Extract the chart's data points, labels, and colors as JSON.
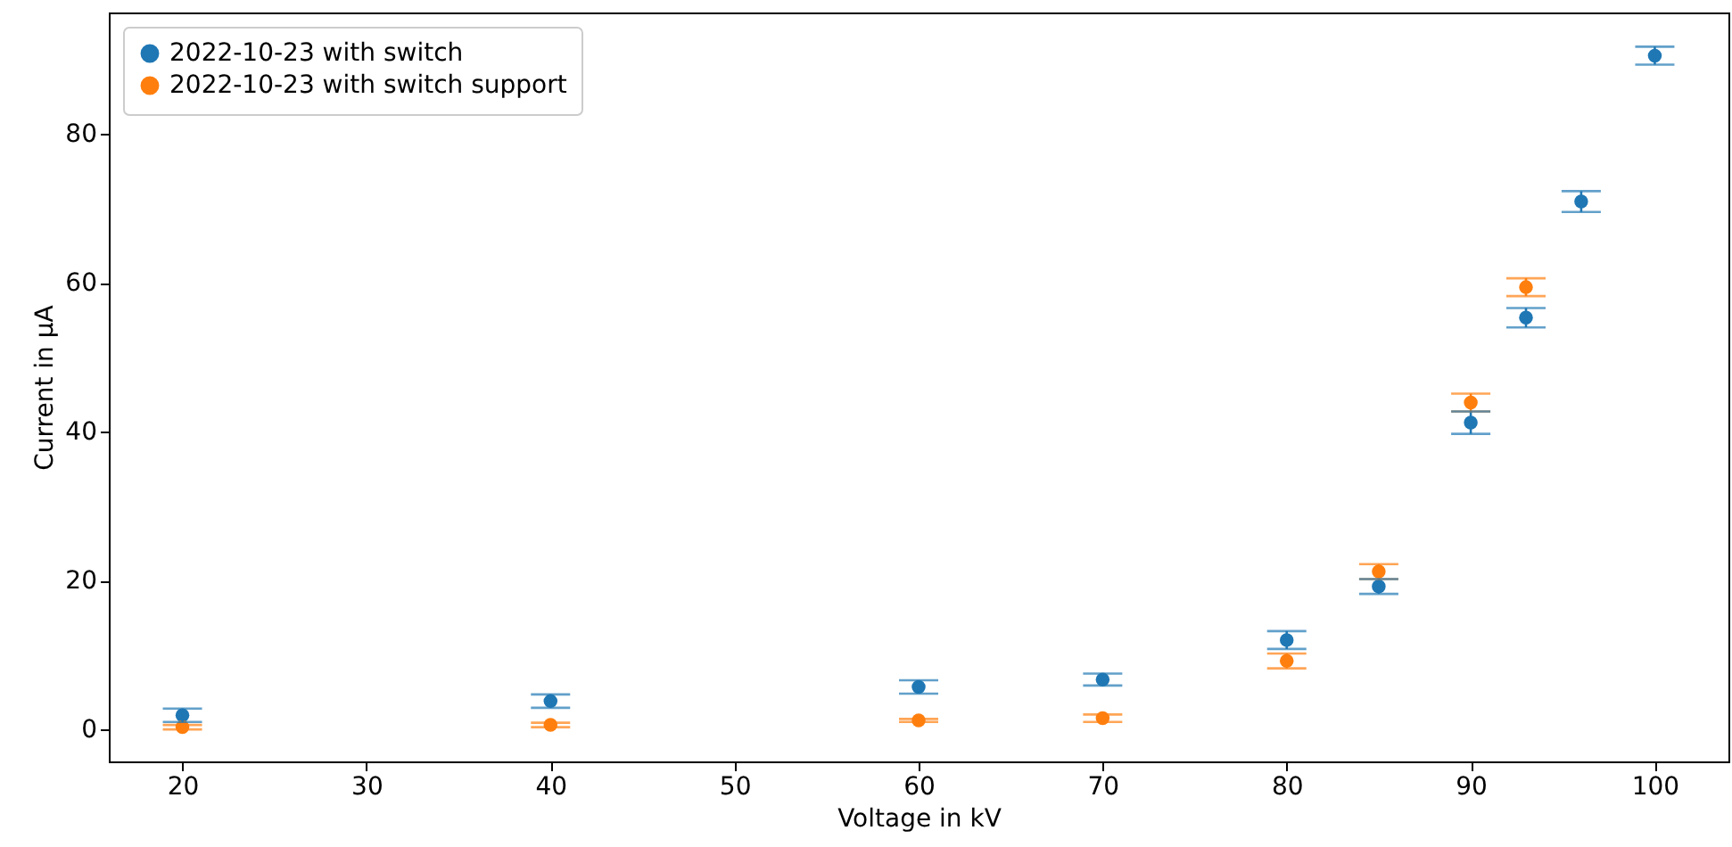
{
  "chart_data": {
    "type": "scatter",
    "xlabel": "Voltage in kV",
    "ylabel": "Current in µA",
    "xlim": [
      16,
      104
    ],
    "ylim": [
      -4.3,
      96.3
    ],
    "xticks": [
      20,
      30,
      40,
      50,
      60,
      70,
      80,
      90,
      100
    ],
    "yticks": [
      0,
      20,
      40,
      60,
      80
    ],
    "grid": false,
    "legend": "top left",
    "marker": "circle",
    "series": [
      {
        "name": "2022-10-23 with switch",
        "color": "#1f77b4",
        "x": [
          20,
          40,
          60,
          70,
          80,
          85,
          90,
          93,
          96,
          100
        ],
        "values": [
          1.9,
          3.8,
          5.7,
          6.7,
          12.0,
          19.2,
          41.2,
          55.3,
          70.9,
          90.5
        ],
        "errors": [
          0.9,
          0.9,
          0.9,
          0.8,
          1.2,
          1.0,
          1.5,
          1.3,
          1.4,
          1.2
        ]
      },
      {
        "name": "2022-10-23 with switch support",
        "color": "#ff7f0e",
        "x": [
          20,
          40,
          60,
          70,
          80,
          85,
          90,
          93
        ],
        "values": [
          0.3,
          0.6,
          1.2,
          1.5,
          9.2,
          21.2,
          43.9,
          59.4
        ],
        "errors": [
          0.3,
          0.3,
          0.2,
          0.5,
          1.0,
          1.0,
          1.2,
          1.2
        ]
      }
    ]
  }
}
